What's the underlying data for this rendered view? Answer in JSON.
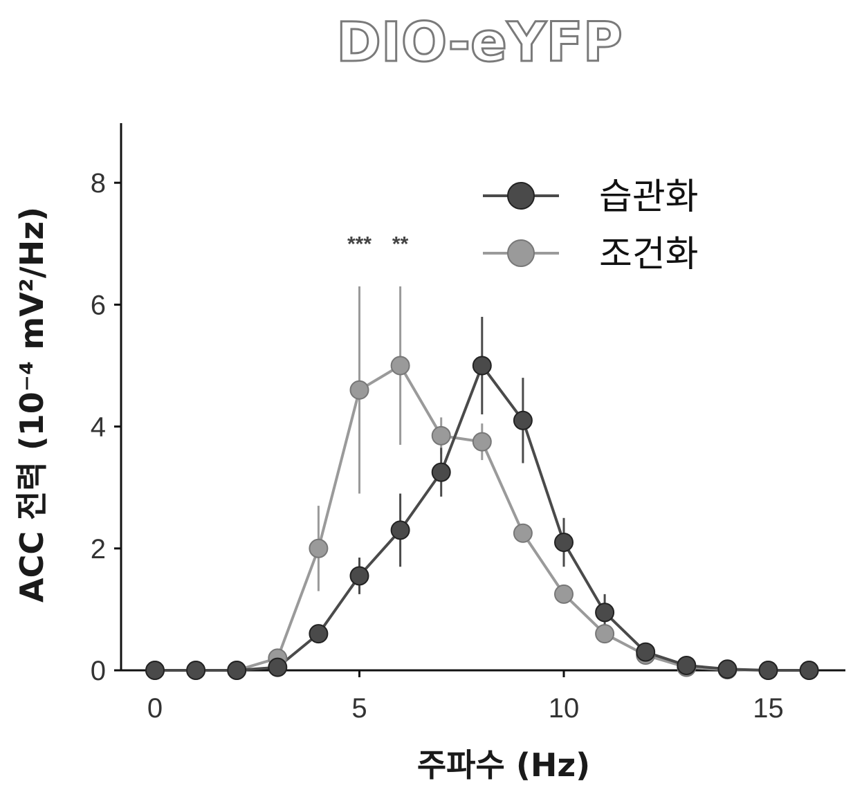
{
  "chart_data": {
    "type": "line",
    "title": "DIO-eYFP",
    "xlabel": "주파수 (Hz)",
    "ylabel": "ACC 전력 (10⁻⁴ mV²/Hz)",
    "xlim": [
      -1.5,
      16.5
    ],
    "ylim": [
      0,
      9
    ],
    "xticks": [
      "0",
      "5",
      "10",
      "15"
    ],
    "yticks": [
      "0",
      "2",
      "4",
      "6",
      "8"
    ],
    "x": [
      0,
      1,
      2,
      3,
      4,
      5,
      6,
      7,
      8,
      9,
      10,
      11,
      12,
      13,
      14,
      15,
      16
    ],
    "series": [
      {
        "name": "습관화",
        "color": "#4a4a4a",
        "values": [
          0,
          0,
          0,
          0.05,
          0.6,
          1.55,
          2.3,
          3.25,
          5.0,
          4.1,
          2.1,
          0.95,
          0.3,
          0.08,
          0.02,
          0.0,
          0.0
        ],
        "errors": [
          0,
          0,
          0,
          0,
          0,
          0.3,
          0.6,
          0.4,
          0.8,
          0.7,
          0.4,
          0.3,
          0,
          0,
          0,
          0,
          0
        ]
      },
      {
        "name": "조건화",
        "color": "#9a9a9a",
        "values": [
          0,
          0,
          0,
          0.2,
          2.0,
          4.6,
          5.0,
          3.85,
          3.75,
          2.25,
          1.25,
          0.6,
          0.25,
          0.05,
          0.01,
          0.0,
          0.0
        ],
        "errors": [
          0,
          0,
          0,
          0,
          0.7,
          1.7,
          1.3,
          0.3,
          0.3,
          0,
          0,
          0,
          0,
          0,
          0,
          0,
          0
        ]
      }
    ],
    "annotations": [
      {
        "text": "***",
        "x": 5,
        "y": 7.0
      },
      {
        "text": "**",
        "x": 6,
        "y": 7.0
      }
    ],
    "legend_position": "top-right",
    "grid": false
  }
}
